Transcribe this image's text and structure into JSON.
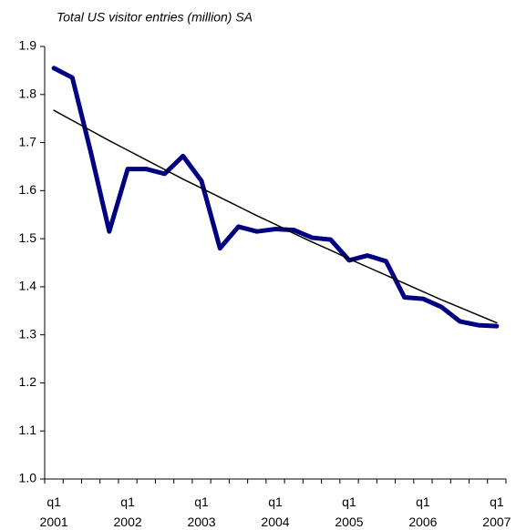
{
  "chart_data": {
    "type": "line",
    "title": "Total US visitor entries (million) SA",
    "categories": [
      "q1\n2001",
      null,
      null,
      null,
      "q1\n2002",
      null,
      null,
      null,
      "q1\n2003",
      null,
      null,
      null,
      "q1\n2004",
      null,
      null,
      null,
      "q1\n2005",
      null,
      null,
      null,
      "q1\n2006",
      null,
      null,
      null,
      "q1\n2007"
    ],
    "series": [
      {
        "color": "#000080",
        "values": [
          1.855,
          1.835,
          1.68,
          1.515,
          1.645,
          1.645,
          1.635,
          1.672,
          1.62,
          1.48,
          1.525,
          1.515,
          1.52,
          1.518,
          1.502,
          1.498,
          1.455,
          1.465,
          1.453,
          1.378,
          1.375,
          1.358,
          1.328,
          1.32,
          1.318
        ]
      },
      {
        "color": "#000000",
        "values": [
          1.767,
          1.746,
          1.725,
          1.704,
          1.684,
          1.664,
          1.644,
          1.624,
          1.605,
          1.586,
          1.567,
          1.548,
          1.53,
          1.511,
          1.493,
          1.476,
          1.458,
          1.441,
          1.424,
          1.407,
          1.39,
          1.373,
          1.357,
          1.341,
          1.325
        ]
      }
    ],
    "ylim": [
      1.0,
      1.9
    ],
    "yticks": [
      {
        "value": 1.0,
        "label": "1.0"
      },
      1.1,
      1.2,
      1.3,
      1.4,
      1.5,
      1.6,
      1.7,
      1.8,
      1.9
    ],
    "grid": false
  }
}
